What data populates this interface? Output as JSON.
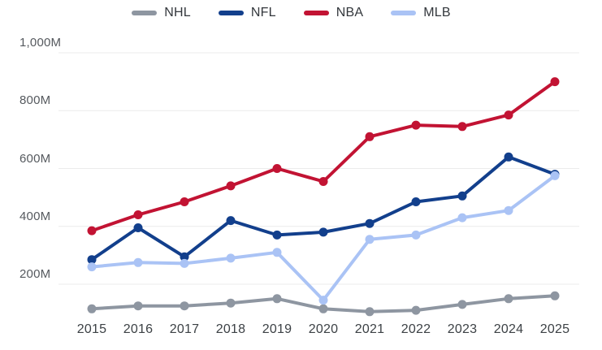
{
  "chart": {
    "background": "#ffffff",
    "grid_color": "#ebebeb",
    "y_axis_label_color": "#55595e",
    "x_axis_label_color": "#3c4145"
  },
  "legend": {
    "position": "top-center",
    "items": [
      {
        "label": "NHL",
        "color": "#8e96a1"
      },
      {
        "label": "NFL",
        "color": "#123f8c"
      },
      {
        "label": "NBA",
        "color": "#c21333"
      },
      {
        "label": "MLB",
        "color": "#aac3f5"
      }
    ]
  },
  "chart_data": {
    "type": "line",
    "title": "",
    "xlabel": "",
    "ylabel": "",
    "grid": "horizontal",
    "legend_position": "top-center",
    "marker": "circle",
    "x": [
      2015,
      2016,
      2017,
      2018,
      2019,
      2020,
      2021,
      2022,
      2023,
      2024,
      2025
    ],
    "y_unit": "M",
    "ylim": [
      100,
      1000
    ],
    "y_ticks": [
      {
        "value": 1000,
        "label": "1,000M"
      },
      {
        "value": 800,
        "label": "800M"
      },
      {
        "value": 600,
        "label": "600M"
      },
      {
        "value": 400,
        "label": "400M"
      },
      {
        "value": 200,
        "label": "200M"
      }
    ],
    "series": [
      {
        "name": "NHL",
        "color": "#8e96a1",
        "values": [
          115,
          125,
          125,
          135,
          150,
          115,
          105,
          110,
          130,
          150,
          160
        ]
      },
      {
        "name": "NFL",
        "color": "#123f8c",
        "values": [
          285,
          395,
          295,
          420,
          370,
          380,
          410,
          485,
          505,
          640,
          580
        ]
      },
      {
        "name": "NBA",
        "color": "#c21333",
        "values": [
          385,
          440,
          485,
          540,
          600,
          555,
          710,
          750,
          745,
          785,
          900
        ]
      },
      {
        "name": "MLB",
        "color": "#aac3f5",
        "values": [
          260,
          275,
          272,
          290,
          310,
          145,
          355,
          370,
          430,
          455,
          575
        ]
      }
    ]
  }
}
